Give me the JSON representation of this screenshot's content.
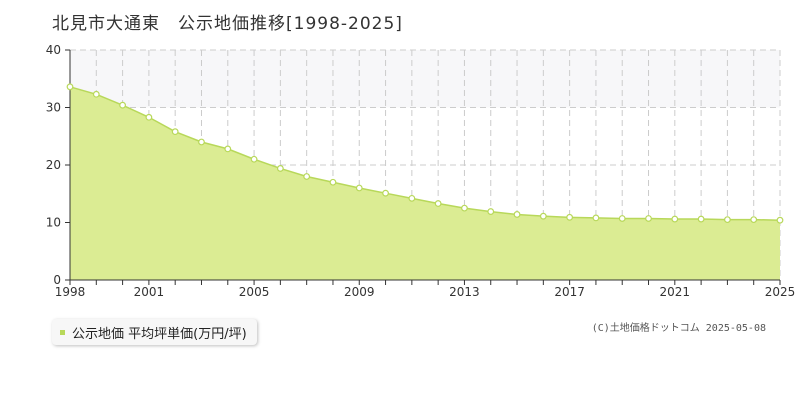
{
  "header": {
    "title": "北見市大通東　公示地価推移[1998-2025]"
  },
  "legend": {
    "label": "公示地価 平均坪単価(万円/坪)"
  },
  "footer": {
    "copyright": "(C)土地価格ドットコム 2025-05-08"
  },
  "colors": {
    "area_fill": "#dbec93",
    "line": "#b8d85a",
    "marker_stroke": "#b8d85a",
    "marker_fill": "#ffffff",
    "band_fill": "#f7f7f9",
    "grid": "#cccccc",
    "axis": "#333333",
    "legend_swatch": "#b8d85a"
  },
  "chart_data": {
    "type": "area",
    "title": "北見市大通東　公示地価推移[1998-2025]",
    "xlabel": "",
    "ylabel": "",
    "x": [
      1998,
      1999,
      2000,
      2001,
      2002,
      2003,
      2004,
      2005,
      2006,
      2007,
      2008,
      2009,
      2010,
      2011,
      2012,
      2013,
      2014,
      2015,
      2016,
      2017,
      2018,
      2019,
      2020,
      2021,
      2022,
      2023,
      2024,
      2025
    ],
    "series": [
      {
        "name": "公示地価 平均坪単価(万円/坪)",
        "values": [
          33.6,
          32.3,
          30.4,
          28.3,
          25.8,
          24.0,
          22.8,
          21.0,
          19.4,
          18.0,
          17.0,
          16.0,
          15.1,
          14.2,
          13.3,
          12.5,
          11.9,
          11.4,
          11.1,
          10.9,
          10.8,
          10.7,
          10.7,
          10.6,
          10.6,
          10.5,
          10.5,
          10.4
        ]
      }
    ],
    "x_tick_labels": [
      "1998",
      "2001",
      "2005",
      "2009",
      "2013",
      "2017",
      "2021",
      "2025"
    ],
    "y_ticks": [
      0,
      10,
      20,
      30,
      40
    ],
    "ylim": [
      0,
      40
    ],
    "xlim": [
      1998,
      2025
    ],
    "grid": true,
    "shaded_band": [
      30,
      40
    ],
    "legend_position": "bottom-left"
  }
}
